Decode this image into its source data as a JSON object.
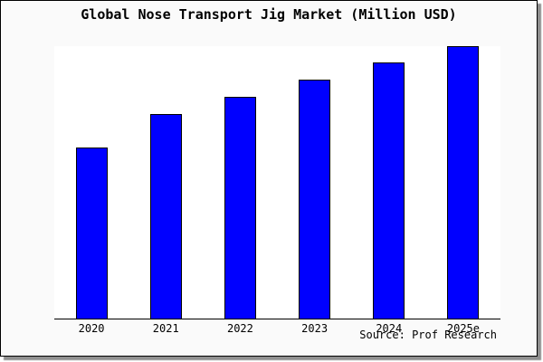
{
  "chart_data": {
    "type": "bar",
    "title": "Global Nose Transport Jig Market (Million USD)",
    "categories": [
      "2020",
      "2021",
      "2022",
      "2023",
      "2024",
      "2025e"
    ],
    "values": [
      62.8,
      75.1,
      81.4,
      87.7,
      93.9,
      100
    ],
    "xlabel": "",
    "ylabel": "",
    "ylim": [
      0,
      100
    ],
    "y_axis_visible": false,
    "grid": false,
    "legend": "none",
    "source": "Source: Prof Research",
    "colors": {
      "bar_fill": "#0000ff",
      "bar_edge": "#000000",
      "plot_background": "#ffffff",
      "figure_background": "#fafafa",
      "frame_border": "#000000",
      "shadow": "#8f8f8f",
      "text": "#000000"
    }
  }
}
